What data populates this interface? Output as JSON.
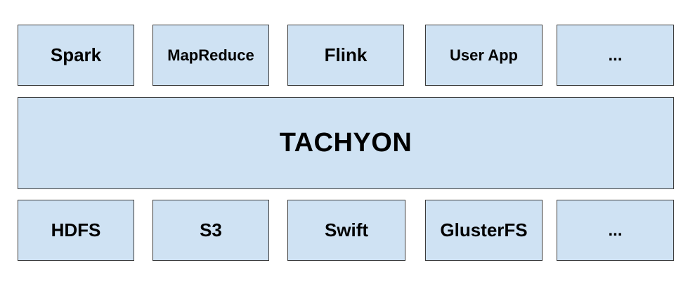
{
  "diagram": {
    "top_layer": [
      {
        "label": "Spark"
      },
      {
        "label": "MapReduce"
      },
      {
        "label": "Flink"
      },
      {
        "label": "User App"
      },
      {
        "label": "..."
      }
    ],
    "core": {
      "label": "TACHYON"
    },
    "bottom_layer": [
      {
        "label": "HDFS"
      },
      {
        "label": "S3"
      },
      {
        "label": "Swift"
      },
      {
        "label": "GlusterFS"
      },
      {
        "label": "..."
      }
    ]
  }
}
